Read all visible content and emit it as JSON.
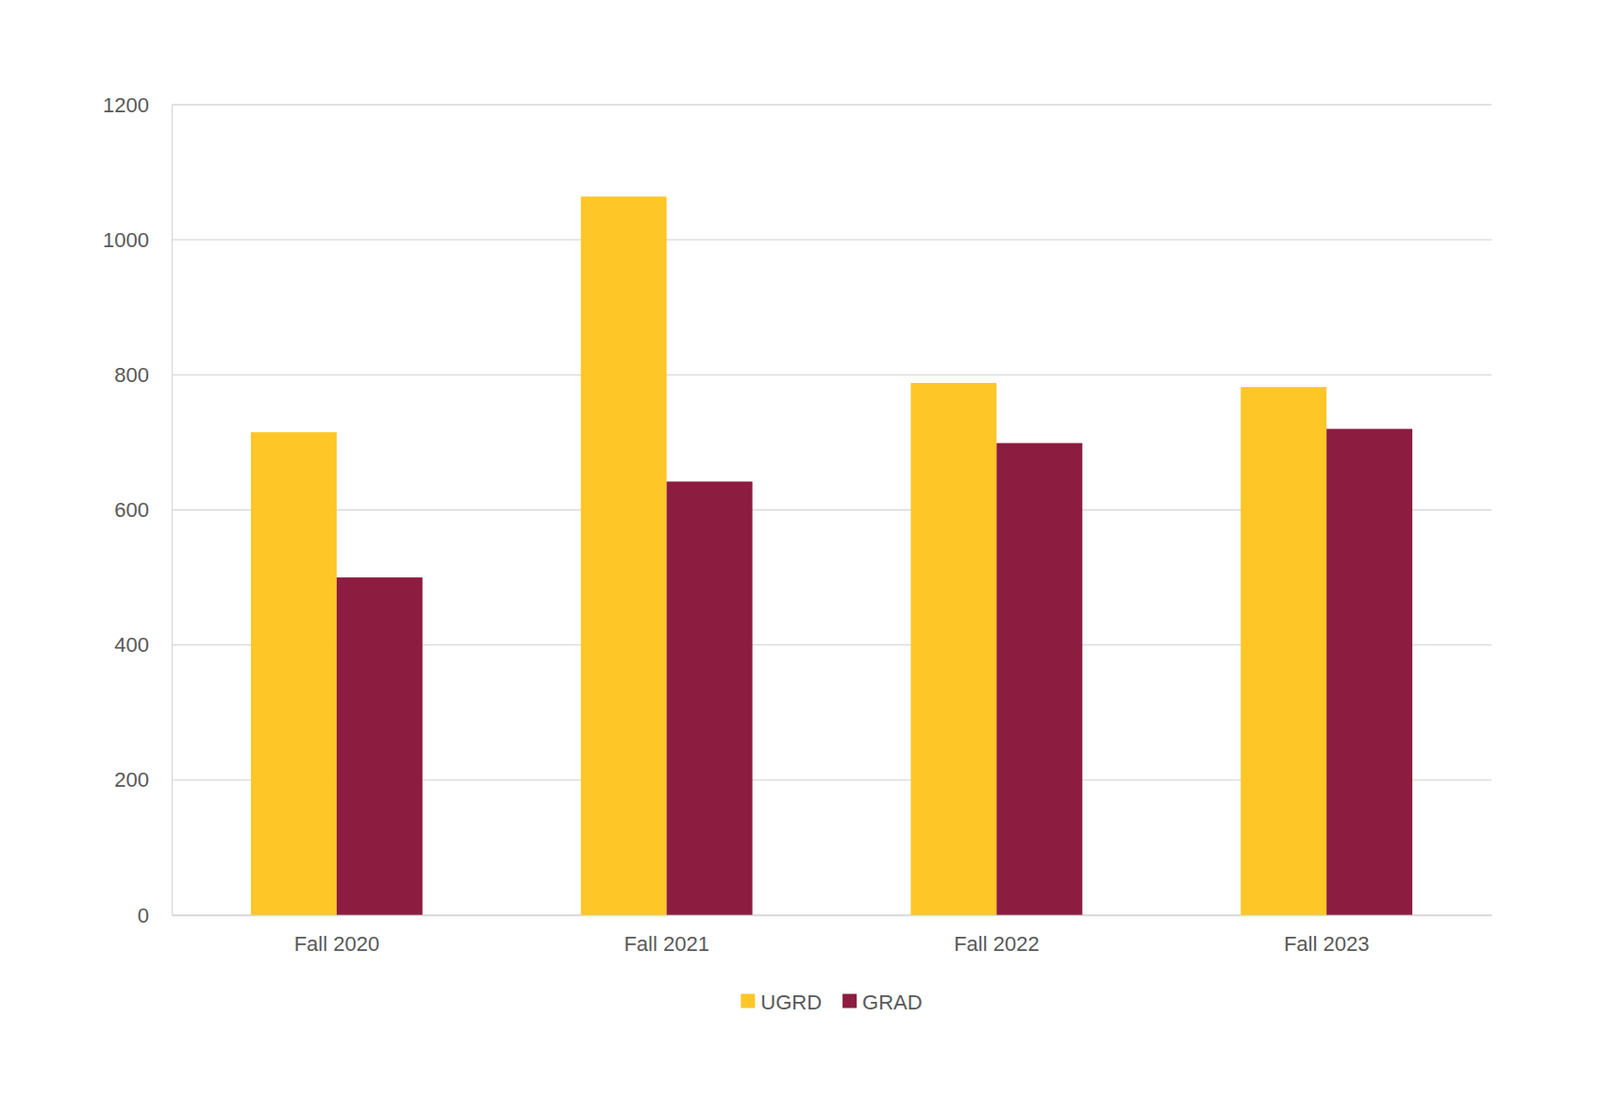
{
  "chart_data": {
    "type": "bar",
    "categories": [
      "Fall 2020",
      "Fall 2021",
      "Fall 2022",
      "Fall 2023"
    ],
    "series": [
      {
        "name": "UGRD",
        "color": "#ffc627",
        "values": [
          715,
          1064,
          788,
          782
        ]
      },
      {
        "name": "GRAD",
        "color": "#8c1d40",
        "values": [
          500,
          642,
          699,
          720
        ]
      }
    ],
    "ylim": [
      0,
      1200
    ],
    "yticks": [
      0,
      200,
      400,
      600,
      800,
      1000,
      1200
    ],
    "grid": true,
    "legend": "bottom"
  }
}
